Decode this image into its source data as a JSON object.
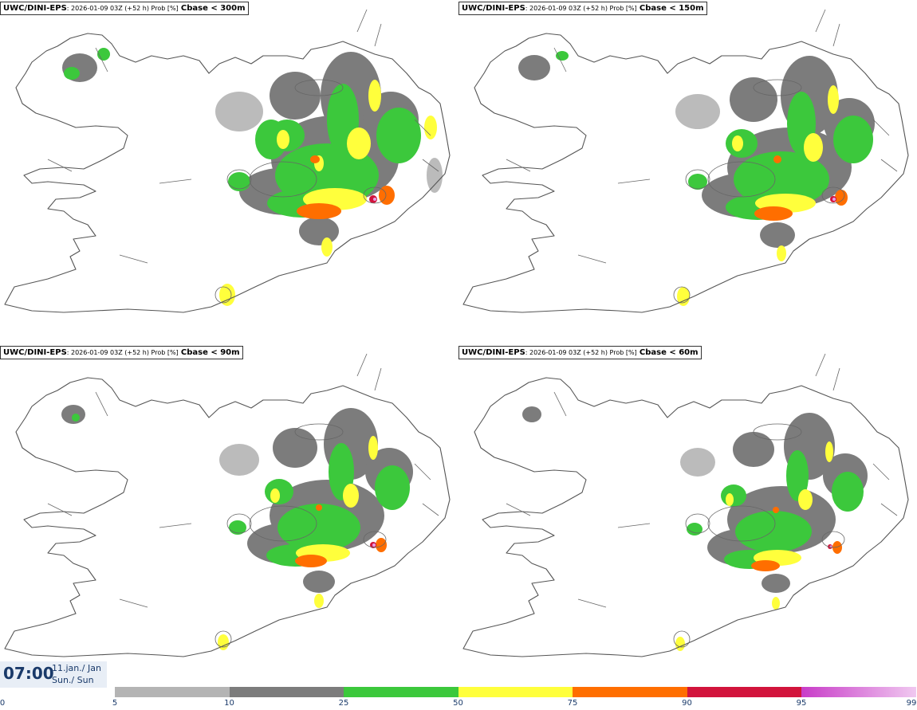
{
  "panels": [
    {
      "model": "UWC/DINI-EPS",
      "info": ": 2026-01-09 03Z (+52 h) Prob [%]",
      "field": "Cbase < 300m"
    },
    {
      "model": "UWC/DINI-EPS",
      "info": ": 2026-01-09 03Z (+52 h) Prob [%]",
      "field": "Cbase < 150m"
    },
    {
      "model": "UWC/DINI-EPS",
      "info": ": 2026-01-09 03Z (+52 h) Prob [%]",
      "field": "Cbase < 90m"
    },
    {
      "model": "UWC/DINI-EPS",
      "info": ": 2026-01-09 03Z (+52 h) Prob [%]",
      "field": "Cbase < 60m"
    }
  ],
  "valid_time": {
    "time": "07:00",
    "date": "11.jan./ Jan",
    "weekday": "Sun./ Sun"
  },
  "legend": {
    "bins": [
      {
        "from": 5,
        "to": 10,
        "color": "#b4b4b4"
      },
      {
        "from": 10,
        "to": 25,
        "color": "#7c7c7c"
      },
      {
        "from": 25,
        "to": 50,
        "color": "#3cc83c"
      },
      {
        "from": 50,
        "to": 75,
        "color": "#ffff3c"
      },
      {
        "from": 75,
        "to": 90,
        "color": "#ff6e00"
      },
      {
        "from": 90,
        "to": 95,
        "color": "#d2143c"
      },
      {
        "from": 95,
        "to": 99,
        "color": "#e6a0e6"
      }
    ],
    "ticks": [
      "0",
      "5",
      "10",
      "25",
      "50",
      "75",
      "90",
      "95",
      "99"
    ]
  }
}
